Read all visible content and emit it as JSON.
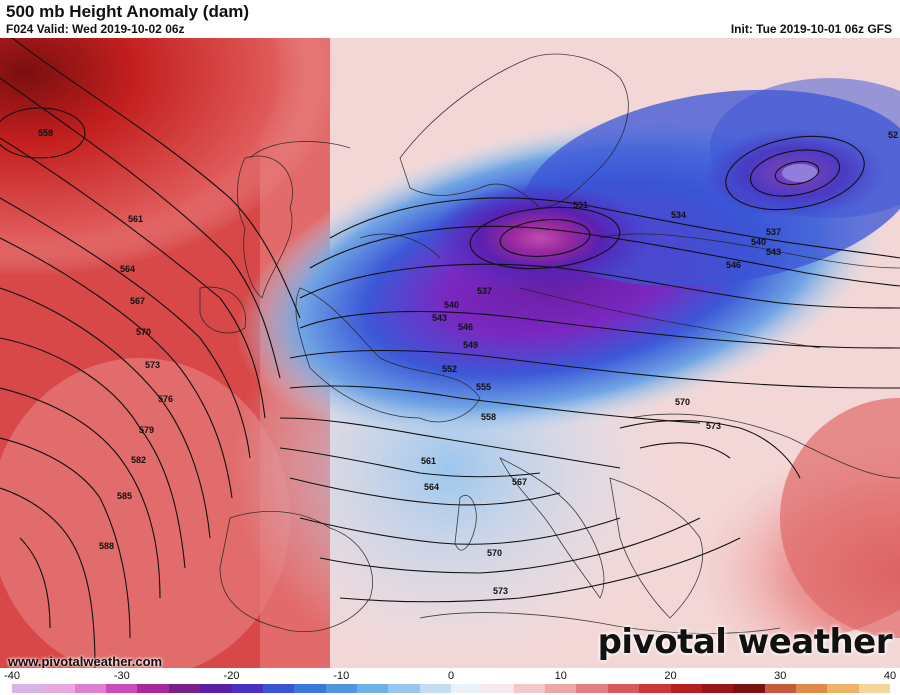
{
  "header": {
    "title": "500 mb Height Anomaly (dam)",
    "valid": "F024 Valid: Wed 2019-10-02 06z",
    "init": "Init: Tue 2019-10-01 06z GFS"
  },
  "footer": {
    "website": "www.pivotalweather.com",
    "logo": "pivotal weather"
  },
  "colorbar": {
    "ticks": [
      "-40",
      "-30",
      "-20",
      "-10",
      "0",
      "10",
      "20",
      "30",
      "40"
    ],
    "range": [
      -40,
      40
    ],
    "colors": [
      "#d8b4e6",
      "#e8a8e0",
      "#de7fd0",
      "#c94cb8",
      "#a82a9a",
      "#7b1f8c",
      "#5a1da6",
      "#4c2fc4",
      "#3b54d6",
      "#3a78db",
      "#4c97e0",
      "#6fb0e6",
      "#98c7ee",
      "#c4ddf3",
      "#eaf2f9",
      "#f8eaea",
      "#f4c8c8",
      "#eea6a6",
      "#e47f7f",
      "#d85a5a",
      "#cc3636",
      "#b91e1e",
      "#9a1616",
      "#7a1010",
      "#c85a3c",
      "#e08a4a",
      "#ecb46a",
      "#f4d69a"
    ]
  },
  "contours": {
    "labels": [
      {
        "text": "558"
      },
      {
        "text": "561"
      },
      {
        "text": "564"
      },
      {
        "text": "567"
      },
      {
        "text": "570"
      },
      {
        "text": "573"
      },
      {
        "text": "576"
      },
      {
        "text": "579"
      },
      {
        "text": "582"
      },
      {
        "text": "585"
      },
      {
        "text": "588"
      },
      {
        "text": "531"
      },
      {
        "text": "534"
      },
      {
        "text": "537"
      },
      {
        "text": "540"
      },
      {
        "text": "543"
      },
      {
        "text": "546"
      },
      {
        "text": "549"
      },
      {
        "text": "552"
      },
      {
        "text": "555"
      },
      {
        "text": "558"
      },
      {
        "text": "561"
      },
      {
        "text": "564"
      },
      {
        "text": "567"
      },
      {
        "text": "570"
      },
      {
        "text": "573"
      },
      {
        "text": "537"
      },
      {
        "text": "540"
      },
      {
        "text": "543"
      },
      {
        "text": "546"
      },
      {
        "text": "570"
      },
      {
        "text": "573"
      },
      {
        "text": "52"
      }
    ]
  }
}
